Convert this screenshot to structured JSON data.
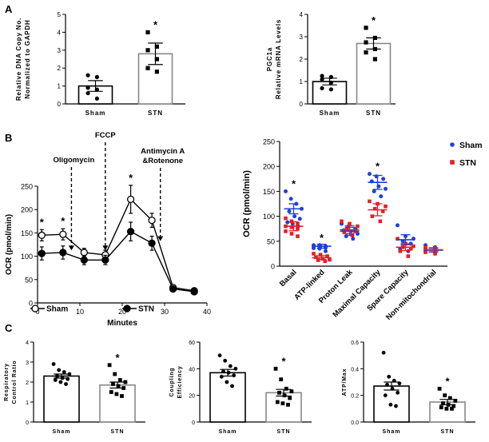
{
  "panel_labels": [
    "A",
    "B",
    "C"
  ],
  "colors": {
    "bar_fill": "#ffffff",
    "axis": "#000000",
    "sham": "#1f3fdc",
    "stn": "#e0202a",
    "stn_bar_edge": "#888888"
  },
  "chart_data": [
    {
      "id": "mtdna",
      "type": "bar",
      "categories": [
        "Sham",
        "STN"
      ],
      "values": [
        1.0,
        2.8
      ],
      "errors": [
        0.3,
        0.6
      ],
      "points": [
        [
          1.6,
          1.5,
          0.9,
          0.8,
          0.6,
          0.3
        ],
        [
          4.0,
          3.2,
          3.0,
          2.5,
          2.0,
          1.8
        ]
      ],
      "point_markers": [
        "circle",
        "square"
      ],
      "ylim": [
        0,
        5
      ],
      "yticks": [
        "0",
        "1",
        "2",
        "3",
        "4",
        "5"
      ],
      "ylabel": [
        "Relative DNA Copy No.",
        "Normalized to GAPDH"
      ],
      "significance": [
        "",
        "*"
      ]
    },
    {
      "id": "pgc1a",
      "type": "bar",
      "categories": [
        "Sham",
        "STN"
      ],
      "values": [
        1.0,
        2.7
      ],
      "errors": [
        0.15,
        0.25
      ],
      "points": [
        [
          1.25,
          1.2,
          1.1,
          0.95,
          0.7,
          0.65
        ],
        [
          3.4,
          2.95,
          2.75,
          2.45,
          2.3,
          2.0
        ]
      ],
      "point_markers": [
        "circle",
        "square"
      ],
      "ylim": [
        0,
        4
      ],
      "yticks": [
        "0",
        "1",
        "2",
        "3",
        "4"
      ],
      "ylabel": [
        "PGC1a",
        "Relative mRNA Levels"
      ],
      "significance": [
        "",
        "*"
      ]
    },
    {
      "id": "ocr-time",
      "type": "line",
      "x": [
        1,
        6,
        11,
        16,
        22,
        27,
        32,
        37
      ],
      "series": [
        {
          "name": "Sham",
          "marker": "open-circle",
          "values": [
            145,
            147,
            108,
            103,
            222,
            177,
            33,
            26
          ],
          "errors": [
            12,
            12,
            9,
            10,
            30,
            15,
            4,
            4
          ]
        },
        {
          "name": "STN",
          "marker": "filled-circle",
          "values": [
            106,
            108,
            92,
            92,
            153,
            128,
            30,
            24
          ],
          "errors": [
            14,
            14,
            10,
            10,
            20,
            15,
            4,
            4
          ]
        }
      ],
      "xlabel": "Minutes",
      "ylabel": "OCR (pmol/min)",
      "xlim": [
        0,
        40
      ],
      "ylim": [
        0,
        250
      ],
      "xticks": [
        "0",
        "10",
        "20",
        "30",
        "40"
      ],
      "yticks": [
        "0",
        "50",
        "100",
        "150",
        "200",
        "250"
      ],
      "injections": [
        {
          "label": "Oligomycin",
          "x": 8
        },
        {
          "label": "FCCP",
          "x": 16
        },
        {
          "label": [
            "Antimycin A",
            "&Rotenone"
          ],
          "x": 29
        }
      ],
      "significance": [
        "*",
        "*",
        "",
        "",
        "*",
        "",
        "",
        ""
      ],
      "legend": [
        "Sham",
        "STN"
      ]
    },
    {
      "id": "ocr-params",
      "type": "scatter",
      "categories": [
        "Basal",
        "ATP-linked",
        "Proton Leak",
        "Maximal Capacity",
        "Spare Capacity",
        "Non-mitochondrial"
      ],
      "series": [
        {
          "name": "Sham",
          "means": [
            115,
            40,
            70,
            168,
            53,
            32
          ],
          "errors": [
            10,
            4,
            8,
            14,
            10,
            4
          ],
          "points": [
            [
              150,
              135,
              125,
              115,
              110,
              100,
              95,
              88,
              85,
              80
            ],
            [
              42,
              42,
              40,
              39,
              38,
              37,
              36,
              35,
              30
            ],
            [
              85,
              80,
              75,
              72,
              70,
              65,
              60,
              55
            ],
            [
              185,
              180,
              175,
              170,
              160,
              155,
              150,
              140
            ],
            [
              82,
              60,
              55,
              50,
              45,
              35,
              30
            ],
            [
              42,
              38,
              35,
              33,
              30,
              28
            ]
          ]
        },
        {
          "name": "STN",
          "means": [
            80,
            17,
            73,
            113,
            38,
            33
          ],
          "errors": [
            9,
            4,
            8,
            12,
            7,
            4
          ],
          "points": [
            [
              96,
              90,
              85,
              80,
              78,
              75,
              70,
              65,
              60
            ],
            [
              25,
              23,
              20,
              18,
              15,
              13,
              12,
              10
            ],
            [
              90,
              85,
              80,
              75,
              70,
              68,
              62
            ],
            [
              130,
              125,
              120,
              115,
              110,
              100,
              90
            ],
            [
              55,
              45,
              40,
              38,
              35,
              30,
              20
            ],
            [
              38,
              35,
              33,
              30,
              28,
              25
            ]
          ]
        }
      ],
      "ylabel": "OCR (pmol/min)",
      "ylim": [
        0,
        250
      ],
      "yticks": [
        "0",
        "50",
        "100",
        "150",
        "200",
        "250"
      ],
      "significance": [
        "*",
        "*",
        "",
        "*",
        "",
        ""
      ],
      "legend": [
        "Sham",
        "STN"
      ],
      "legend_position": "top-right"
    },
    {
      "id": "rcr",
      "type": "bar",
      "categories": [
        "Sham",
        "STN"
      ],
      "values": [
        2.3,
        1.85
      ],
      "errors": [
        0.1,
        0.15
      ],
      "points": [
        [
          2.9,
          2.6,
          2.5,
          2.4,
          2.3,
          2.2,
          2.15,
          2.1,
          2.0,
          1.9
        ],
        [
          2.85,
          2.4,
          2.1,
          2.0,
          1.9,
          1.8,
          1.7,
          1.5,
          1.4,
          1.3
        ]
      ],
      "point_markers": [
        "circle",
        "square"
      ],
      "ylim": [
        0,
        4
      ],
      "yticks": [
        "0",
        "1",
        "2",
        "3",
        "4"
      ],
      "ylabel": [
        "Respiratory",
        "Control Ratio"
      ],
      "significance": [
        "",
        "*"
      ]
    },
    {
      "id": "coupling",
      "type": "bar",
      "categories": [
        "Sham",
        "STN"
      ],
      "values": [
        37,
        22
      ],
      "errors": [
        2.5,
        2.5
      ],
      "points": [
        [
          50,
          46,
          42,
          40,
          38,
          37,
          35,
          34,
          30,
          27
        ],
        [
          40,
          32,
          25,
          23,
          22,
          20,
          18,
          15,
          14,
          13
        ]
      ],
      "point_markers": [
        "circle",
        "square"
      ],
      "ylim": [
        0,
        60
      ],
      "yticks": [
        "0",
        "20",
        "40",
        "60"
      ],
      "ylabel": [
        "Coupling",
        "Efficiency"
      ],
      "significance": [
        "",
        "*"
      ]
    },
    {
      "id": "atp-max",
      "type": "bar",
      "categories": [
        "Sham",
        "STN"
      ],
      "values": [
        0.27,
        0.15
      ],
      "errors": [
        0.03,
        0.02
      ],
      "points": [
        [
          0.52,
          0.34,
          0.31,
          0.29,
          0.28,
          0.25,
          0.22,
          0.2,
          0.13,
          0.12
        ],
        [
          0.25,
          0.2,
          0.18,
          0.16,
          0.14,
          0.13,
          0.12,
          0.11,
          0.1,
          0.1
        ]
      ],
      "point_markers": [
        "circle",
        "square"
      ],
      "ylim": [
        0,
        0.6
      ],
      "yticks": [
        "0.0",
        "0.2",
        "0.4",
        "0.6"
      ],
      "ylabel": [
        "ATP/Max"
      ],
      "significance": [
        "",
        "*"
      ]
    }
  ]
}
